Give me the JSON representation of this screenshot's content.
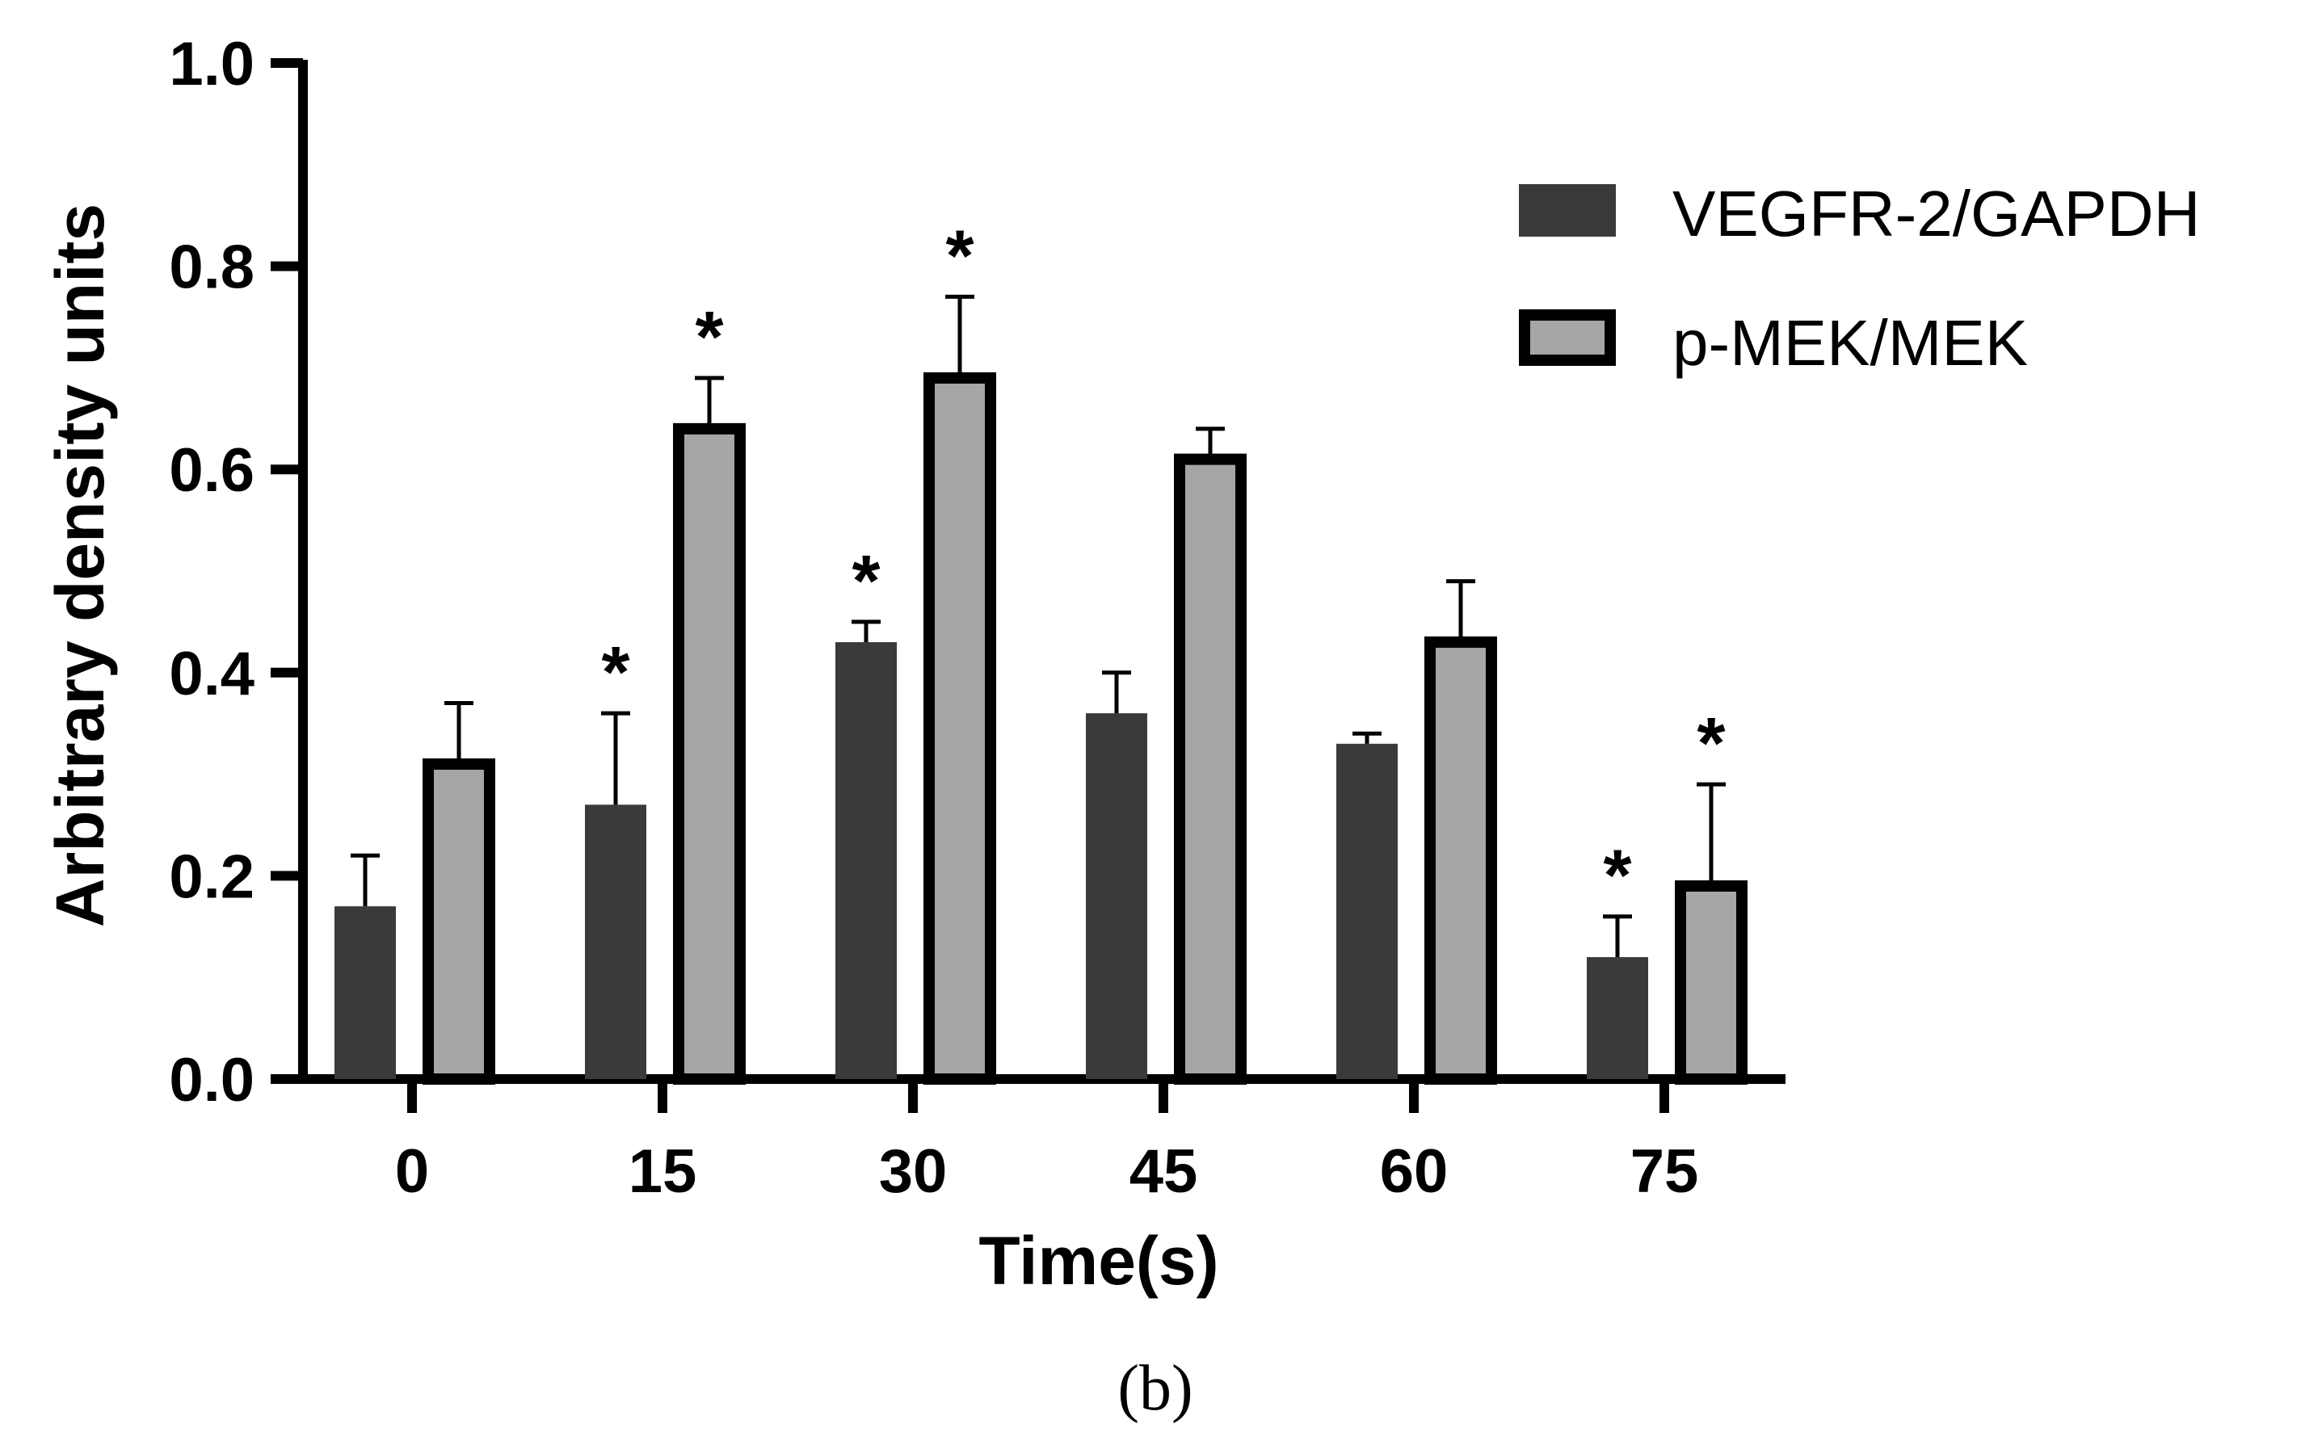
{
  "chart_data": {
    "type": "bar",
    "categories": [
      "0",
      "15",
      "30",
      "45",
      "60",
      "75"
    ],
    "xlabel": "Time(s)",
    "ylabel": "Arbitrary density units",
    "ylim": [
      0,
      1.0
    ],
    "yticks": [
      "0.0",
      "0.2",
      "0.4",
      "0.6",
      "0.8",
      "1.0"
    ],
    "legend_position": "top-right",
    "series": [
      {
        "name": "VEGFR-2/GAPDH",
        "color": "#3a3a3a",
        "values": [
          0.17,
          0.27,
          0.43,
          0.36,
          0.33,
          0.12
        ],
        "errors": [
          0.05,
          0.09,
          0.02,
          0.04,
          0.01,
          0.04
        ],
        "significant": [
          false,
          true,
          true,
          false,
          false,
          true
        ]
      },
      {
        "name": "p-MEK/MEK",
        "color": "#a6a6a6",
        "values": [
          0.31,
          0.64,
          0.69,
          0.61,
          0.43,
          0.19
        ],
        "errors": [
          0.06,
          0.05,
          0.08,
          0.03,
          0.06,
          0.1
        ],
        "significant": [
          false,
          true,
          true,
          false,
          false,
          true
        ]
      }
    ],
    "significance_marker": "*",
    "panel_label": "(b)"
  }
}
